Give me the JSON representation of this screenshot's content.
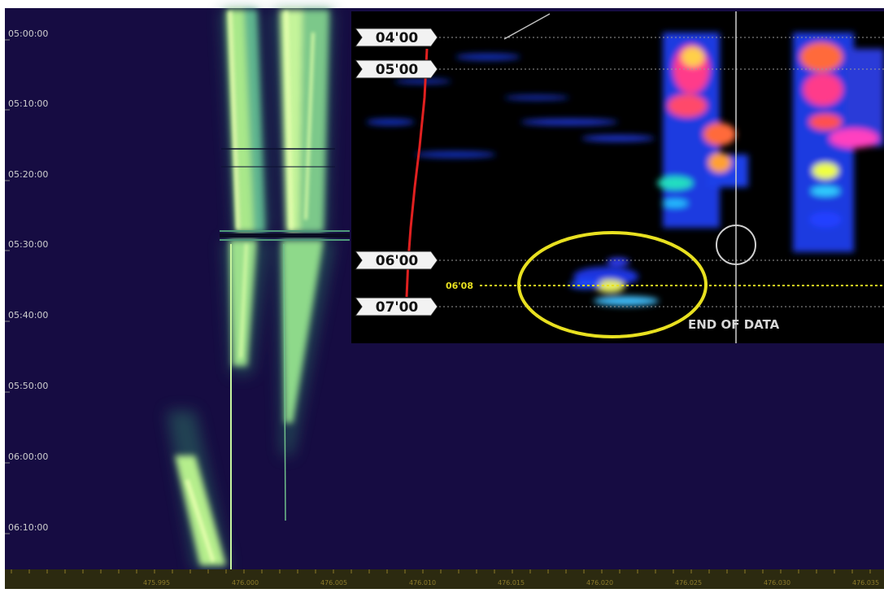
{
  "chart_data": [
    {
      "type": "heatmap",
      "y_time_labels": [
        "05:00:00",
        "05:10:00",
        "05:20:00",
        "05:30:00",
        "05:40:00",
        "05:50:00",
        "06:00:00",
        "06:10:00"
      ],
      "x_tick_labels": [
        "475.995",
        "476.000",
        "476.005",
        "476.010",
        "476.015",
        "476.020",
        "476.025",
        "476.030",
        "476.035"
      ],
      "colors": {
        "background": "#160c42",
        "signal": "#b8f07a",
        "axis_text": "#cfcfcf",
        "axis_bar": "#2c2a10",
        "tick_text": "#8c7a2a"
      }
    },
    {
      "type": "heatmap",
      "time_markers": [
        "04'00",
        "05'00",
        "06'00",
        "07'00"
      ],
      "highlight_label": "06'08",
      "annotation": "END OF DATA",
      "colors": {
        "background": "#000000",
        "highlight": "#e8e020",
        "trace": "#e02020",
        "cursor": "#d0d0d0",
        "marker_fill": "#f2f2f2"
      }
    }
  ]
}
